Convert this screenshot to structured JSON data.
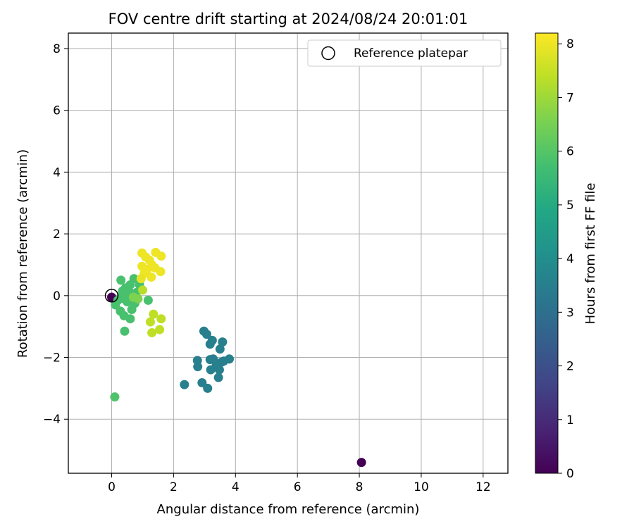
{
  "chart_data": {
    "type": "scatter",
    "title": "FOV centre drift starting at 2024/08/24 20:01:01",
    "xlabel": "Angular distance from reference (arcmin)",
    "ylabel": "Rotation from reference (arcmin)",
    "xlim": [
      -1.4,
      12.8
    ],
    "ylim": [
      -5.75,
      8.5
    ],
    "xticks": [
      0,
      2,
      4,
      6,
      8,
      10,
      12
    ],
    "yticks": [
      -4,
      -2,
      0,
      2,
      4,
      6,
      8
    ],
    "xtick_labels": [
      "0",
      "2",
      "4",
      "6",
      "8",
      "10",
      "12"
    ],
    "ytick_labels": [
      "−4",
      "−2",
      "0",
      "2",
      "4",
      "6",
      "8"
    ],
    "grid": true,
    "legend": {
      "placement": "top-right",
      "label": "Reference platepar",
      "marker": "open-circle"
    },
    "reference_point": {
      "x": 0,
      "y": 0
    },
    "colorbar": {
      "label": "Hours from first FF file",
      "min": 0,
      "max": 8.2,
      "ticks": [
        0,
        1,
        2,
        3,
        4,
        5,
        6,
        7,
        8
      ],
      "tick_labels": [
        "0",
        "1",
        "2",
        "3",
        "4",
        "5",
        "6",
        "7",
        "8"
      ],
      "colormap": "viridis"
    },
    "points": [
      {
        "x": 0.0,
        "y": -0.05,
        "h": 0.0
      },
      {
        "x": 8.07,
        "y": -5.4,
        "h": 0.0
      },
      {
        "x": 2.98,
        "y": -1.15,
        "h": 3.5
      },
      {
        "x": 3.07,
        "y": -1.25,
        "h": 3.5
      },
      {
        "x": 3.25,
        "y": -1.45,
        "h": 3.5
      },
      {
        "x": 3.18,
        "y": -1.57,
        "h": 3.5
      },
      {
        "x": 3.58,
        "y": -1.5,
        "h": 3.5
      },
      {
        "x": 3.5,
        "y": -1.73,
        "h": 3.5
      },
      {
        "x": 2.77,
        "y": -2.1,
        "h": 3.5
      },
      {
        "x": 2.78,
        "y": -2.3,
        "h": 3.5
      },
      {
        "x": 3.18,
        "y": -2.07,
        "h": 3.5
      },
      {
        "x": 3.28,
        "y": -2.05,
        "h": 3.5
      },
      {
        "x": 3.38,
        "y": -2.25,
        "h": 3.5
      },
      {
        "x": 3.55,
        "y": -2.15,
        "h": 3.5
      },
      {
        "x": 3.62,
        "y": -2.12,
        "h": 3.5
      },
      {
        "x": 3.8,
        "y": -2.05,
        "h": 3.5
      },
      {
        "x": 3.2,
        "y": -2.4,
        "h": 3.5
      },
      {
        "x": 3.48,
        "y": -2.4,
        "h": 3.5
      },
      {
        "x": 3.45,
        "y": -2.65,
        "h": 3.5
      },
      {
        "x": 2.35,
        "y": -2.88,
        "h": 3.5
      },
      {
        "x": 2.92,
        "y": -2.82,
        "h": 3.5
      },
      {
        "x": 3.1,
        "y": -3.0,
        "h": 3.5
      },
      {
        "x": 0.1,
        "y": -3.28,
        "h": 5.9
      },
      {
        "x": 0.3,
        "y": 0.5,
        "h": 5.8
      },
      {
        "x": 0.35,
        "y": 0.15,
        "h": 5.8
      },
      {
        "x": 0.45,
        "y": 0.25,
        "h": 5.8
      },
      {
        "x": 0.55,
        "y": 0.05,
        "h": 5.8
      },
      {
        "x": 0.6,
        "y": 0.35,
        "h": 5.8
      },
      {
        "x": 0.72,
        "y": 0.55,
        "h": 5.8
      },
      {
        "x": 0.8,
        "y": 0.1,
        "h": 5.8
      },
      {
        "x": 0.9,
        "y": 0.35,
        "h": 5.8
      },
      {
        "x": 0.2,
        "y": -0.15,
        "h": 5.8
      },
      {
        "x": 0.3,
        "y": -0.05,
        "h": 5.8
      },
      {
        "x": 0.4,
        "y": -0.1,
        "h": 5.8
      },
      {
        "x": 0.5,
        "y": -0.2,
        "h": 5.8
      },
      {
        "x": 0.65,
        "y": -0.05,
        "h": 5.8
      },
      {
        "x": 0.75,
        "y": -0.25,
        "h": 5.8
      },
      {
        "x": 0.12,
        "y": -0.3,
        "h": 5.8
      },
      {
        "x": 0.28,
        "y": -0.5,
        "h": 5.8
      },
      {
        "x": 0.4,
        "y": -0.65,
        "h": 5.8
      },
      {
        "x": 0.6,
        "y": -0.75,
        "h": 5.8
      },
      {
        "x": 0.65,
        "y": -0.45,
        "h": 5.8
      },
      {
        "x": 0.42,
        "y": -1.15,
        "h": 5.8
      },
      {
        "x": 1.18,
        "y": -0.15,
        "h": 5.8
      },
      {
        "x": 0.55,
        "y": 0.15,
        "h": 5.8
      },
      {
        "x": 0.85,
        "y": -0.1,
        "h": 6.6
      },
      {
        "x": 0.7,
        "y": -0.05,
        "h": 6.6
      },
      {
        "x": 1.0,
        "y": 0.18,
        "h": 7.3
      },
      {
        "x": 1.35,
        "y": -0.6,
        "h": 7.4
      },
      {
        "x": 1.6,
        "y": -0.75,
        "h": 7.4
      },
      {
        "x": 1.25,
        "y": -0.85,
        "h": 7.4
      },
      {
        "x": 1.55,
        "y": -1.1,
        "h": 7.4
      },
      {
        "x": 1.3,
        "y": -1.2,
        "h": 7.4
      },
      {
        "x": 0.98,
        "y": 1.38,
        "h": 8.0
      },
      {
        "x": 1.1,
        "y": 1.25,
        "h": 8.0
      },
      {
        "x": 1.22,
        "y": 1.15,
        "h": 8.0
      },
      {
        "x": 1.42,
        "y": 1.4,
        "h": 8.0
      },
      {
        "x": 1.6,
        "y": 1.28,
        "h": 8.0
      },
      {
        "x": 0.98,
        "y": 0.95,
        "h": 8.0
      },
      {
        "x": 1.15,
        "y": 0.85,
        "h": 8.0
      },
      {
        "x": 1.3,
        "y": 1.0,
        "h": 8.0
      },
      {
        "x": 1.4,
        "y": 0.9,
        "h": 8.0
      },
      {
        "x": 1.05,
        "y": 0.72,
        "h": 8.0
      },
      {
        "x": 1.28,
        "y": 0.6,
        "h": 8.0
      },
      {
        "x": 1.58,
        "y": 0.78,
        "h": 8.0
      },
      {
        "x": 0.95,
        "y": 0.55,
        "h": 7.9
      }
    ]
  }
}
